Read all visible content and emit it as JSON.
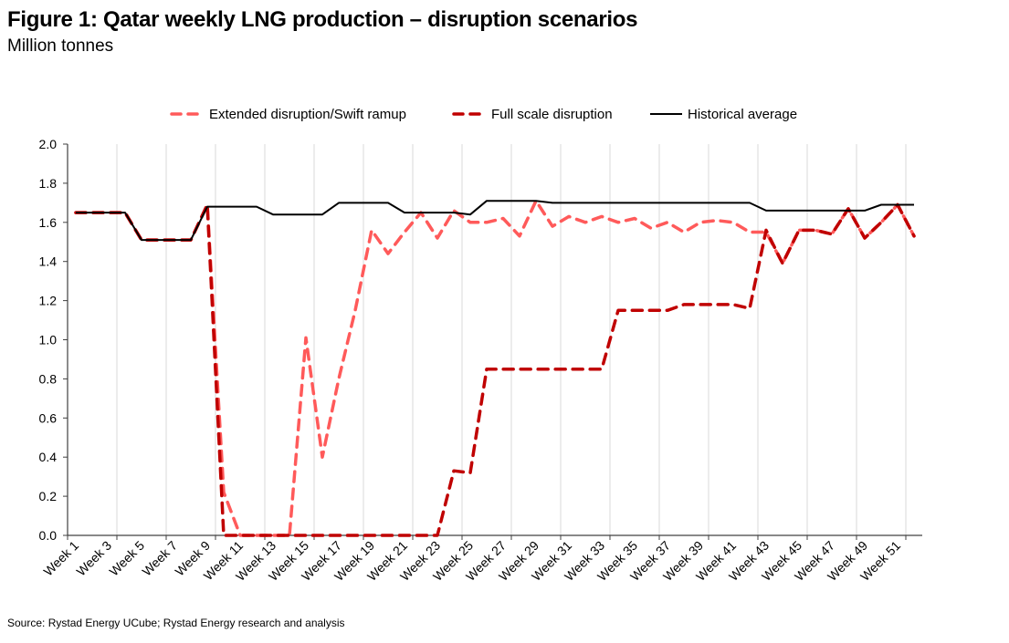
{
  "chart_data": {
    "type": "line",
    "title": "Figure 1: Qatar weekly LNG production – disruption scenarios",
    "subtitle": "Million tonnes",
    "xlabel": "",
    "ylabel": "Million tonnes",
    "ylim": [
      0,
      2.0
    ],
    "yticks": [
      "0.0",
      "0.2",
      "0.4",
      "0.6",
      "0.8",
      "1.0",
      "1.2",
      "1.4",
      "1.6",
      "1.8",
      "2.0"
    ],
    "grid": "vertical",
    "legend_position": "top",
    "categories": [
      "Week 1",
      "Week 2",
      "Week 3",
      "Week 4",
      "Week 5",
      "Week 6",
      "Week 7",
      "Week 8",
      "Week 9",
      "Week 10",
      "Week 11",
      "Week 12",
      "Week 13",
      "Week 14",
      "Week 15",
      "Week 16",
      "Week 17",
      "Week 18",
      "Week 19",
      "Week 20",
      "Week 21",
      "Week 22",
      "Week 23",
      "Week 24",
      "Week 25",
      "Week 26",
      "Week 27",
      "Week 28",
      "Week 29",
      "Week 30",
      "Week 31",
      "Week 32",
      "Week 33",
      "Week 34",
      "Week 35",
      "Week 36",
      "Week 37",
      "Week 38",
      "Week 39",
      "Week 40",
      "Week 41",
      "Week 42",
      "Week 43",
      "Week 44",
      "Week 45",
      "Week 46",
      "Week 47",
      "Week 48",
      "Week 49",
      "Week 50",
      "Week 51",
      "Week 52"
    ],
    "xtick_labels": [
      "Week 1",
      "Week 3",
      "Week 5",
      "Week 7",
      "Week 9",
      "Week 11",
      "Week 13",
      "Week 15",
      "Week 17",
      "Week 19",
      "Week 21",
      "Week 23",
      "Week 25",
      "Week 27",
      "Week 29",
      "Week 31",
      "Week 33",
      "Week 35",
      "Week 37",
      "Week 39",
      "Week 41",
      "Week 43",
      "Week 45",
      "Week 47",
      "Week 49",
      "Week 51"
    ],
    "series": [
      {
        "name": "Extended disruption/Swift ramup",
        "color": "#ff5a5a",
        "style": "dashed",
        "values": [
          1.65,
          1.65,
          1.65,
          1.65,
          1.51,
          1.51,
          1.51,
          1.51,
          1.69,
          0.22,
          0.0,
          0.0,
          0.0,
          0.0,
          1.01,
          0.4,
          0.8,
          1.15,
          1.56,
          1.44,
          1.55,
          1.65,
          1.52,
          1.66,
          1.6,
          1.6,
          1.62,
          1.53,
          1.71,
          1.58,
          1.63,
          1.6,
          1.63,
          1.6,
          1.62,
          1.57,
          1.6,
          1.55,
          1.6,
          1.61,
          1.6,
          1.55,
          1.55,
          1.39,
          1.56,
          1.56,
          1.54,
          1.67,
          1.52,
          1.6,
          1.69,
          1.53
        ]
      },
      {
        "name": "Full scale disruption",
        "color": "#c00000",
        "style": "dashed",
        "values": [
          1.65,
          1.65,
          1.65,
          1.65,
          1.51,
          1.51,
          1.51,
          1.51,
          1.69,
          0.0,
          0.0,
          0.0,
          0.0,
          0.0,
          0.0,
          0.0,
          0.0,
          0.0,
          0.0,
          0.0,
          0.0,
          0.0,
          0.0,
          0.33,
          0.32,
          0.85,
          0.85,
          0.85,
          0.85,
          0.85,
          0.85,
          0.85,
          0.85,
          1.15,
          1.15,
          1.15,
          1.15,
          1.18,
          1.18,
          1.18,
          1.18,
          1.16,
          1.56,
          1.39,
          1.56,
          1.56,
          1.54,
          1.67,
          1.52,
          1.6,
          1.69,
          1.53
        ]
      },
      {
        "name": "Historical average",
        "color": "#000000",
        "style": "solid",
        "values": [
          1.65,
          1.65,
          1.65,
          1.65,
          1.51,
          1.51,
          1.51,
          1.51,
          1.68,
          1.68,
          1.68,
          1.68,
          1.64,
          1.64,
          1.64,
          1.64,
          1.7,
          1.7,
          1.7,
          1.7,
          1.65,
          1.65,
          1.65,
          1.65,
          1.64,
          1.71,
          1.71,
          1.71,
          1.71,
          1.7,
          1.7,
          1.7,
          1.7,
          1.7,
          1.7,
          1.7,
          1.7,
          1.7,
          1.7,
          1.7,
          1.7,
          1.7,
          1.66,
          1.66,
          1.66,
          1.66,
          1.66,
          1.66,
          1.66,
          1.69,
          1.69,
          1.69
        ]
      }
    ]
  },
  "footer": {
    "source": "Source: Rystad Energy UCube; Rystad Energy research and analysis"
  }
}
